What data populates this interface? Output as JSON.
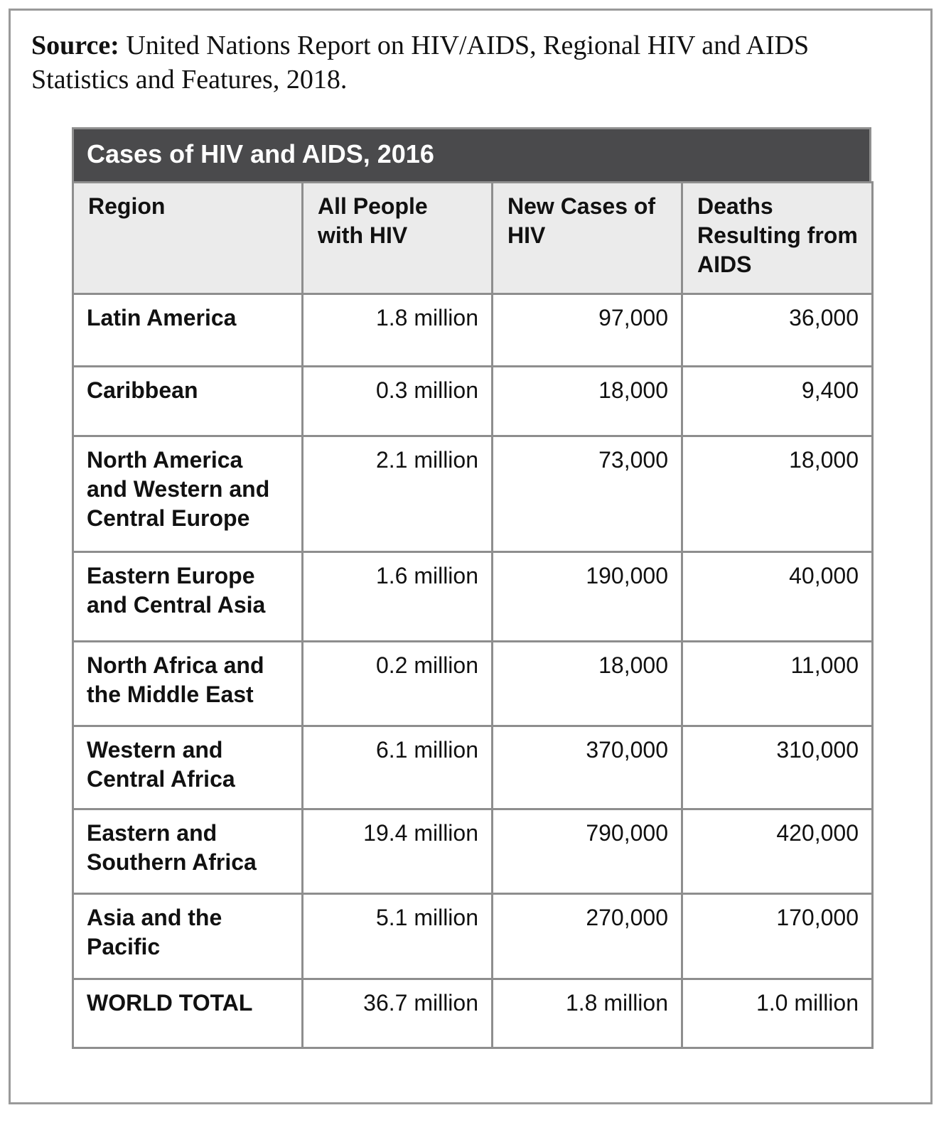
{
  "source": {
    "label": "Source:",
    "text": " United Nations Report on HIV/AIDS, Regional HIV and AIDS Statistics and Features, 2018."
  },
  "table": {
    "title": "Cases of HIV and AIDS, 2016",
    "headers": [
      "Region",
      "All People with HIV",
      "New Cases of HIV",
      "Deaths Resulting from AIDS"
    ],
    "rows": [
      {
        "region": "Latin America",
        "people": "1.8 million",
        "new_cases": "97,000",
        "deaths": "36,000"
      },
      {
        "region": "Caribbean",
        "people": "0.3 million",
        "new_cases": "18,000",
        "deaths": "9,400"
      },
      {
        "region": "North America and Western and Central Europe",
        "people": "2.1 million",
        "new_cases": "73,000",
        "deaths": "18,000"
      },
      {
        "region": "Eastern Europe and Central Asia",
        "people": "1.6 million",
        "new_cases": "190,000",
        "deaths": "40,000"
      },
      {
        "region": "North Africa and the Middle East",
        "people": "0.2 million",
        "new_cases": "18,000",
        "deaths": "11,000"
      },
      {
        "region": "Western and Central Africa",
        "people": "6.1 million",
        "new_cases": "370,000",
        "deaths": "310,000"
      },
      {
        "region": "Eastern and Southern Africa",
        "people": "19.4 million",
        "new_cases": "790,000",
        "deaths": "420,000"
      },
      {
        "region": "Asia and the Pacific",
        "people": "5.1 million",
        "new_cases": "270,000",
        "deaths": "170,000"
      },
      {
        "region": "WORLD TOTAL",
        "people": "36.7 million",
        "new_cases": "1.8 million",
        "deaths": "1.0 million"
      }
    ]
  },
  "colors": {
    "title_bar": "#4a4a4c",
    "header_bg": "#ebebeb",
    "border": "#8e8e8e"
  }
}
